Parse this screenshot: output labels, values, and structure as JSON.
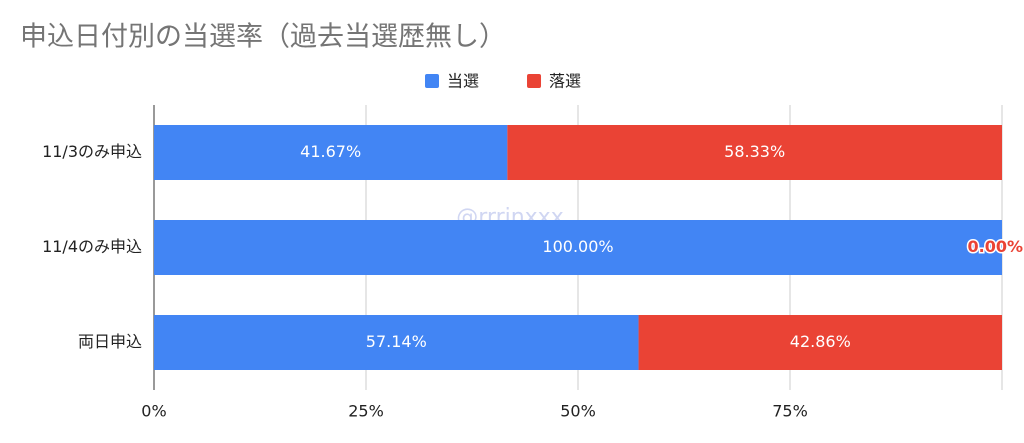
{
  "chart_data": {
    "type": "stacked-bar-horizontal",
    "title": "申込日付別の当選率（過去当選歴無し）",
    "watermark": "@rrrinxxx",
    "categories": [
      "11/3のみ申込",
      "11/4のみ申込",
      "両日申込"
    ],
    "series": [
      {
        "name": "当選",
        "color": "#4285f4",
        "values": [
          41.67,
          100.0,
          57.14
        ],
        "value_labels": [
          "41.67%",
          "100.00%",
          "57.14%"
        ]
      },
      {
        "name": "落選",
        "color": "#ea4335",
        "values": [
          58.33,
          0.0,
          42.86
        ],
        "value_labels": [
          "58.33%",
          "0.00%",
          "42.86%"
        ]
      }
    ],
    "xlim": [
      0,
      100
    ],
    "xticks": [
      {
        "value": 0,
        "label": "0%"
      },
      {
        "value": 25,
        "label": "25%"
      },
      {
        "value": 50,
        "label": "50%"
      },
      {
        "value": 75,
        "label": "75%"
      }
    ],
    "grid": true,
    "legend": "top"
  }
}
